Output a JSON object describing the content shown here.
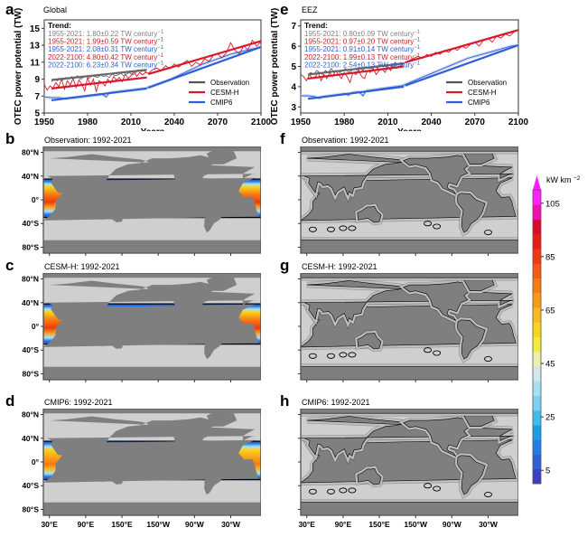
{
  "chart_data": [
    {
      "id": "a",
      "type": "line",
      "panel_letter": "a",
      "title": "Global",
      "xlabel": "Years",
      "ylabel": "OTEC power potential (TW)",
      "xlim": [
        1950,
        2100
      ],
      "ylim": [
        5,
        16
      ],
      "xticks": [
        1950,
        1980,
        2010,
        2040,
        2070,
        2100
      ],
      "yticks": [
        5,
        7,
        9,
        11,
        13,
        15
      ],
      "trend_header": "Trend:",
      "trend_lines": [
        {
          "text": "1955-2021: 1.80±0.22 TW century",
          "sup": "−1",
          "color": "#808080"
        },
        {
          "text": "1955-2021: 1.99±0.59 TW century",
          "sup": "−1",
          "color": "#d7192b"
        },
        {
          "text": "1955-2021: 2.08±0.31 TW century",
          "sup": "−1",
          "color": "#2f5fd6"
        },
        {
          "text": "2022-2100: 4.80±0.42 TW century",
          "sup": "−1",
          "color": "#d7192b"
        },
        {
          "text": "2022-2100: 6.23±0.34 TW century",
          "sup": "−1",
          "color": "#2f5fd6"
        }
      ],
      "legend": [
        {
          "name": "Observation",
          "color": "#555555"
        },
        {
          "name": "CESM-H",
          "color": "#d7192b"
        },
        {
          "name": "CMIP6",
          "color": "#2f5fd6"
        }
      ],
      "legend_position": "bottom-right",
      "series": [
        {
          "name": "Observation",
          "color": "#666666",
          "x": [
            1955,
            1957,
            1959,
            1961,
            1963,
            1965,
            1967,
            1969,
            1971,
            1973,
            1975,
            1977,
            1979,
            1981,
            1983,
            1985,
            1987,
            1989,
            1991,
            1993,
            1995,
            1997,
            1999,
            2001,
            2003,
            2005,
            2007,
            2009,
            2011,
            2013,
            2015,
            2017,
            2019,
            2021
          ],
          "values": [
            8.7,
            9.0,
            8.8,
            9.1,
            8.9,
            9.2,
            9.0,
            9.3,
            9.1,
            9.4,
            9.0,
            9.2,
            9.3,
            9.1,
            9.4,
            9.3,
            9.2,
            9.5,
            9.3,
            9.4,
            9.2,
            9.6,
            9.4,
            9.5,
            9.7,
            9.4,
            9.6,
            9.8,
            9.5,
            9.7,
            10.1,
            9.9,
            10.0,
            9.8
          ],
          "trend": [
            [
              1955,
              8.9
            ],
            [
              2021,
              10.1
            ]
          ]
        },
        {
          "name": "CESM-H",
          "color": "#d7192b",
          "x": [
            1950,
            1952,
            1954,
            1956,
            1958,
            1960,
            1962,
            1964,
            1966,
            1968,
            1970,
            1972,
            1974,
            1976,
            1978,
            1980,
            1982,
            1984,
            1986,
            1988,
            1990,
            1992,
            1994,
            1996,
            1998,
            2000,
            2002,
            2004,
            2006,
            2008,
            2010,
            2012,
            2014,
            2016,
            2018,
            2020,
            2022,
            2025,
            2028,
            2031,
            2034,
            2037,
            2040,
            2043,
            2046,
            2049,
            2052,
            2055,
            2058,
            2061,
            2064,
            2067,
            2070,
            2073,
            2076,
            2079,
            2082,
            2085,
            2088,
            2091,
            2094,
            2097,
            2100
          ],
          "values": [
            8.4,
            7.7,
            8.2,
            7.9,
            8.6,
            8.1,
            9.0,
            7.8,
            8.8,
            8.3,
            9.1,
            8.0,
            8.9,
            8.4,
            7.6,
            9.2,
            8.3,
            9.0,
            7.5,
            8.8,
            8.6,
            8.2,
            9.0,
            8.5,
            9.3,
            8.9,
            9.2,
            8.7,
            9.6,
            9.1,
            9.4,
            9.9,
            9.3,
            9.8,
            9.5,
            9.8,
            9.7,
            10.1,
            10.3,
            10.0,
            10.6,
            10.2,
            10.8,
            10.4,
            10.9,
            11.2,
            10.5,
            11.0,
            10.7,
            11.4,
            11.1,
            11.8,
            12.0,
            11.5,
            12.1,
            13.3,
            12.4,
            12.0,
            12.9,
            12.5,
            13.6,
            12.9,
            13.4
          ],
          "trend": [
            [
              1955,
              7.9
            ],
            [
              2021,
              9.2
            ],
            [
              2022,
              9.6
            ],
            [
              2100,
              13.5
            ]
          ]
        },
        {
          "name": "CMIP6",
          "color": "#2f5fd6",
          "x": [
            1950,
            1955,
            1960,
            1965,
            1970,
            1975,
            1980,
            1985,
            1990,
            1993,
            1995,
            2000,
            2005,
            2010,
            2015,
            2020,
            2025,
            2030,
            2035,
            2040,
            2045,
            2050,
            2055,
            2060,
            2065,
            2070,
            2075,
            2080,
            2085,
            2090,
            2095,
            2100
          ],
          "values": [
            6.9,
            6.8,
            6.8,
            6.7,
            6.8,
            6.9,
            7.0,
            7.1,
            7.2,
            6.9,
            7.4,
            7.5,
            7.6,
            7.7,
            7.8,
            7.9,
            8.2,
            8.5,
            8.8,
            9.2,
            9.6,
            10.0,
            10.4,
            10.8,
            11.1,
            11.4,
            11.7,
            12.0,
            12.2,
            12.4,
            12.6,
            12.8
          ],
          "trend": [
            [
              1955,
              6.5
            ],
            [
              2021,
              7.9
            ],
            [
              2022,
              8.0
            ],
            [
              2100,
              12.8
            ]
          ]
        }
      ]
    },
    {
      "id": "e",
      "type": "line",
      "panel_letter": "e",
      "title": "EEZ",
      "xlabel": "Years",
      "ylabel": "OTEC power potential (TW)",
      "xlim": [
        1950,
        2100
      ],
      "ylim": [
        2.7,
        7.3
      ],
      "xticks": [
        1950,
        1980,
        2010,
        2040,
        2070,
        2100
      ],
      "yticks": [
        3,
        4,
        5,
        6,
        7
      ],
      "trend_header": "Trend:",
      "trend_lines": [
        {
          "text": "1955-2021: 0.80±0.09 TW century",
          "sup": "−1",
          "color": "#808080"
        },
        {
          "text": "1955-2021: 0.97±0.20 TW century",
          "sup": "−1",
          "color": "#d7192b"
        },
        {
          "text": "1955-2021: 0.91±0.14 TW century",
          "sup": "−1",
          "color": "#2f5fd6"
        },
        {
          "text": "2022-2100: 1.99±0.13 TW century",
          "sup": "−1",
          "color": "#d7192b"
        },
        {
          "text": "2022-2100: 2.54±0.13 TW century",
          "sup": "−1",
          "color": "#2f5fd6"
        }
      ],
      "legend": [
        {
          "name": "Observation",
          "color": "#555555"
        },
        {
          "name": "CESM-H",
          "color": "#d7192b"
        },
        {
          "name": "CMIP6",
          "color": "#2f5fd6"
        }
      ],
      "legend_position": "bottom-right",
      "series": [
        {
          "name": "Observation",
          "color": "#666666",
          "x": [
            1955,
            1957,
            1959,
            1961,
            1963,
            1965,
            1967,
            1969,
            1971,
            1973,
            1975,
            1977,
            1979,
            1981,
            1983,
            1985,
            1987,
            1989,
            1991,
            1993,
            1995,
            1997,
            1999,
            2001,
            2003,
            2005,
            2007,
            2009,
            2011,
            2013,
            2015,
            2017,
            2019,
            2021
          ],
          "values": [
            4.6,
            4.7,
            4.6,
            4.8,
            4.7,
            4.6,
            4.8,
            4.7,
            4.9,
            4.7,
            4.8,
            4.7,
            4.8,
            4.9,
            4.7,
            4.8,
            4.9,
            4.8,
            4.9,
            4.8,
            5.0,
            4.9,
            4.9,
            5.0,
            4.9,
            5.1,
            5.0,
            5.0,
            5.1,
            5.0,
            5.2,
            5.1,
            5.2,
            5.1
          ],
          "trend": [
            [
              1955,
              4.6
            ],
            [
              2021,
              5.15
            ]
          ]
        },
        {
          "name": "CESM-H",
          "color": "#d7192b",
          "x": [
            1950,
            1952,
            1954,
            1956,
            1958,
            1960,
            1962,
            1964,
            1966,
            1968,
            1970,
            1972,
            1974,
            1976,
            1978,
            1980,
            1982,
            1984,
            1986,
            1988,
            1990,
            1992,
            1994,
            1996,
            1998,
            2000,
            2002,
            2004,
            2006,
            2008,
            2010,
            2012,
            2014,
            2016,
            2018,
            2020,
            2022,
            2025,
            2028,
            2031,
            2034,
            2037,
            2040,
            2043,
            2046,
            2049,
            2052,
            2055,
            2058,
            2061,
            2064,
            2067,
            2070,
            2073,
            2076,
            2079,
            2082,
            2085,
            2088,
            2091,
            2094,
            2097,
            2100
          ],
          "values": [
            4.6,
            4.5,
            4.3,
            4.6,
            4.4,
            4.5,
            4.7,
            4.3,
            4.6,
            4.4,
            4.7,
            4.5,
            4.8,
            4.6,
            4.4,
            4.7,
            4.5,
            4.2,
            4.7,
            4.6,
            4.8,
            4.5,
            4.4,
            4.8,
            4.7,
            4.9,
            4.6,
            4.8,
            4.9,
            4.7,
            5.0,
            4.8,
            5.1,
            4.9,
            5.0,
            5.1,
            5.2,
            5.3,
            5.4,
            5.5,
            5.4,
            5.6,
            5.5,
            5.7,
            5.6,
            5.8,
            5.7,
            5.9,
            5.8,
            6.0,
            5.9,
            6.1,
            6.2,
            6.0,
            6.3,
            6.4,
            6.2,
            6.5,
            6.4,
            6.6,
            6.5,
            6.7,
            6.8
          ],
          "trend": [
            [
              1955,
              4.4
            ],
            [
              2021,
              5.0
            ],
            [
              2022,
              5.2
            ],
            [
              2100,
              6.8
            ]
          ]
        },
        {
          "name": "CMIP6",
          "color": "#2f5fd6",
          "x": [
            1950,
            1955,
            1960,
            1963,
            1965,
            1970,
            1975,
            1980,
            1983,
            1985,
            1990,
            1993,
            1995,
            2000,
            2005,
            2010,
            2015,
            2020,
            2025,
            2030,
            2035,
            2040,
            2045,
            2050,
            2055,
            2060,
            2065,
            2070,
            2075,
            2080,
            2085,
            2090,
            2095,
            2100
          ],
          "values": [
            3.55,
            3.55,
            3.5,
            3.42,
            3.5,
            3.55,
            3.6,
            3.65,
            3.58,
            3.7,
            3.75,
            3.55,
            3.8,
            3.85,
            3.9,
            3.95,
            4.0,
            4.05,
            4.2,
            4.35,
            4.5,
            4.65,
            4.8,
            4.95,
            5.1,
            5.25,
            5.4,
            5.5,
            5.6,
            5.7,
            5.8,
            5.9,
            6.0,
            6.05
          ],
          "trend": [
            [
              1955,
              3.4
            ],
            [
              2021,
              4.0
            ],
            [
              2022,
              4.05
            ],
            [
              2100,
              6.05
            ]
          ]
        }
      ]
    },
    {
      "id": "maps",
      "type": "heatmap",
      "colorbar": {
        "label": "kW km",
        "label_sup": "−2",
        "ticks": [
          5,
          25,
          45,
          65,
          85,
          105
        ],
        "range": [
          0,
          110
        ],
        "extend": "max",
        "colors": [
          "#3a3fc4",
          "#2f5fd6",
          "#1f7ee8",
          "#169fea",
          "#3bbdf0",
          "#7dd0f2",
          "#a8dff5",
          "#cfe8e8",
          "#eef0b0",
          "#f5ea40",
          "#f8d420",
          "#fbb820",
          "#fb9a18",
          "#f87a10",
          "#f45a10",
          "#ee3a10",
          "#e81c10",
          "#d80a28",
          "#f010b0",
          "#ff20ff"
        ]
      },
      "lat_ticks": [
        "80°N",
        "40°N",
        "0°",
        "40°S",
        "80°S"
      ],
      "lon_ticks": [
        "30°E",
        "90°E",
        "150°E",
        "150°W",
        "90°W",
        "30°W"
      ],
      "panels": [
        {
          "letter": "b",
          "title": "Observation: 1992-2021",
          "region": "Global"
        },
        {
          "letter": "c",
          "title": "CESM-H: 1992-2021",
          "region": "Global"
        },
        {
          "letter": "d",
          "title": "CMIP6: 1992-2021",
          "region": "Global"
        },
        {
          "letter": "f",
          "title": "Observation: 1992-2021",
          "region": "EEZ"
        },
        {
          "letter": "g",
          "title": "CESM-H: 1992-2021",
          "region": "EEZ"
        },
        {
          "letter": "h",
          "title": "CMIP6: 1992-2021",
          "region": "EEZ"
        }
      ]
    }
  ]
}
